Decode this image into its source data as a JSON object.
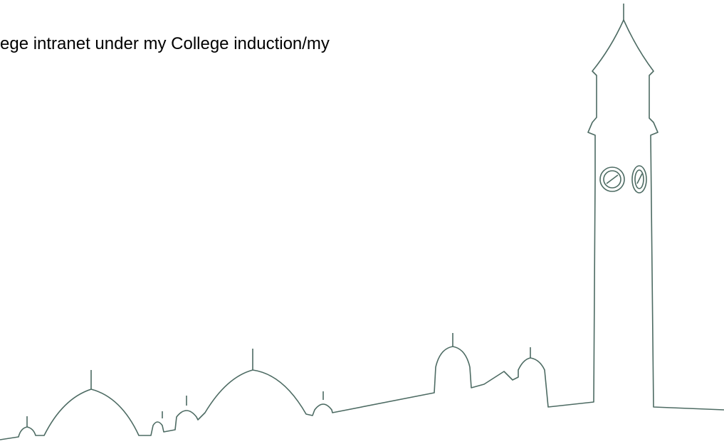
{
  "slide": {
    "text": "ege intranet under my College induction/my"
  }
}
